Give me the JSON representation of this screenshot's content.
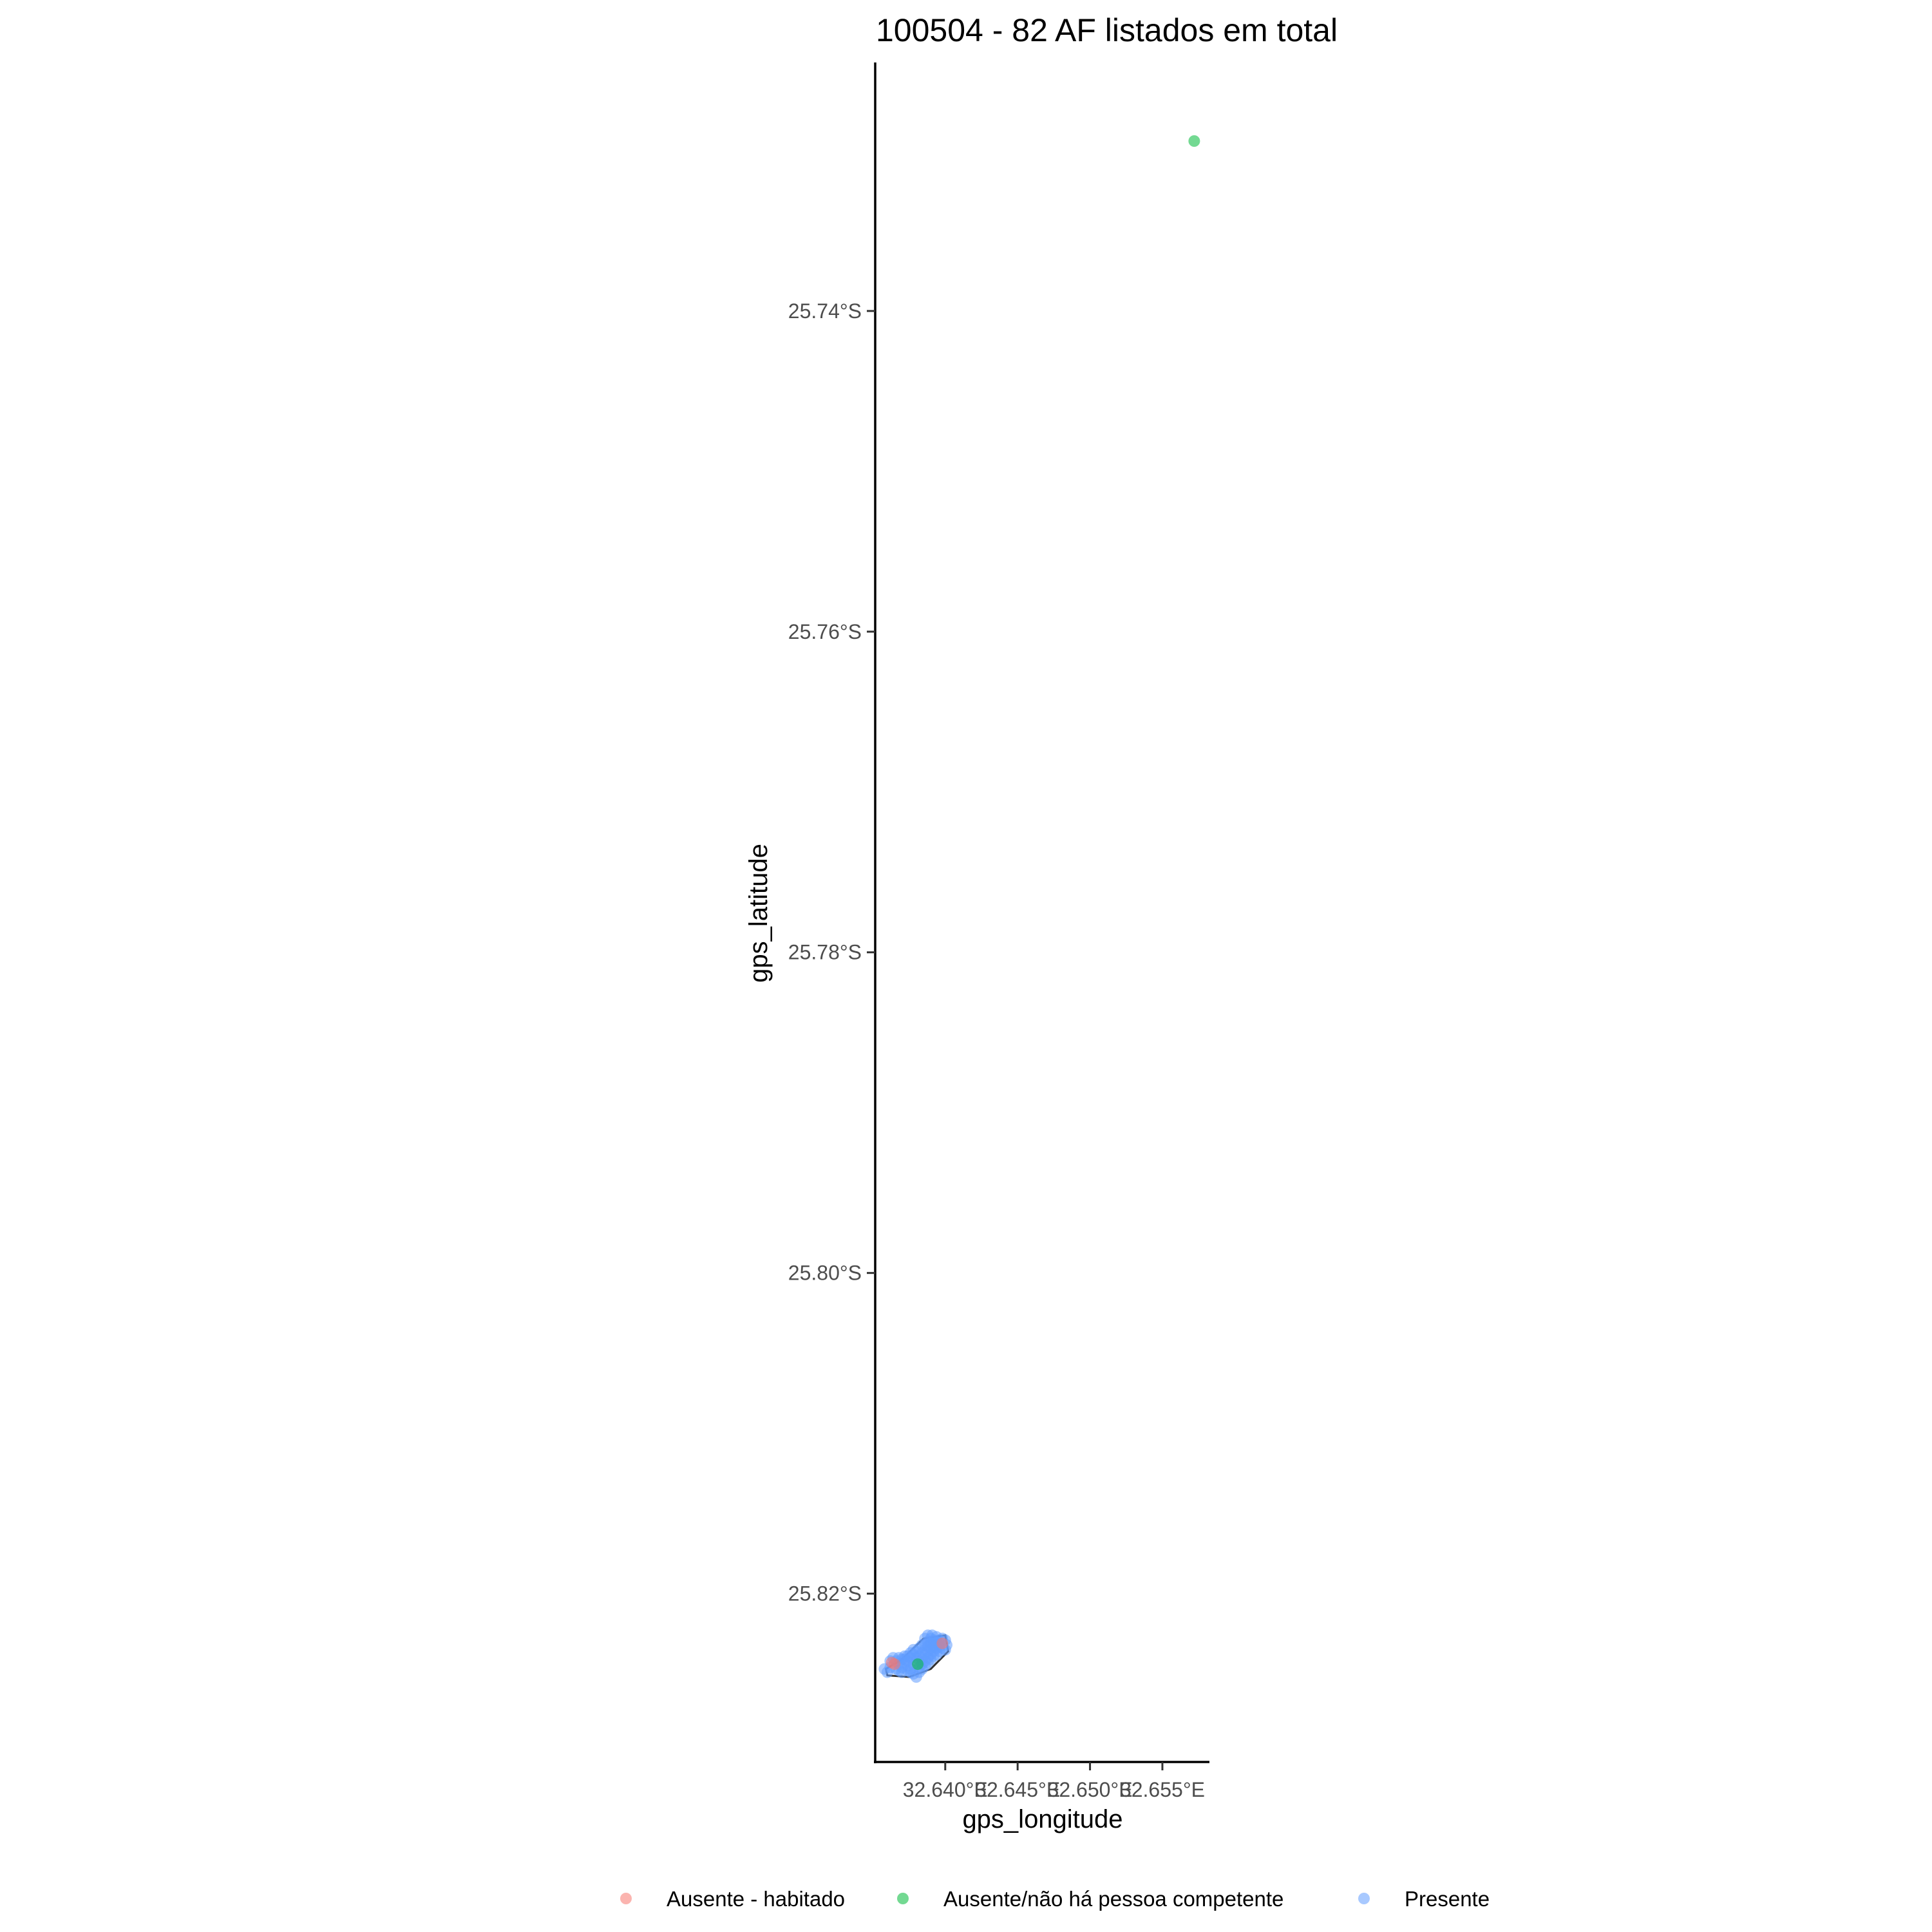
{
  "chart_data": {
    "type": "scatter",
    "title": "100504 - 82 AF listados em total",
    "xlabel": "gps_longitude",
    "ylabel": "gps_latitude",
    "xlim": [
      32.63525,
      32.65825
    ],
    "ylim": [
      -25.8305,
      -25.7245
    ],
    "x_ticks": [
      {
        "value": 32.64,
        "label": "32.640°E"
      },
      {
        "value": 32.645,
        "label": "32.645°E"
      },
      {
        "value": 32.65,
        "label": "32.650°E"
      },
      {
        "value": 32.655,
        "label": "32.655°E"
      }
    ],
    "y_ticks": [
      {
        "value": -25.74,
        "label": "25.74°S"
      },
      {
        "value": -25.76,
        "label": "25.76°S"
      },
      {
        "value": -25.78,
        "label": "25.78°S"
      },
      {
        "value": -25.8,
        "label": "25.80°S"
      },
      {
        "value": -25.82,
        "label": "25.82°S"
      }
    ],
    "grid": false,
    "legend_position": "bottom",
    "boundary": [
      [
        32.6359,
        -25.8247
      ],
      [
        32.637,
        -25.8241
      ],
      [
        32.6385,
        -25.8228
      ],
      [
        32.64,
        -25.8226
      ],
      [
        32.6402,
        -25.8236
      ],
      [
        32.639,
        -25.8247
      ],
      [
        32.6375,
        -25.8252
      ],
      [
        32.636,
        -25.8251
      ]
    ],
    "series": [
      {
        "name": "Ausente - habitado",
        "color": "#f8766d",
        "points": [
          [
            32.6363,
            -25.8243
          ],
          [
            32.6365,
            -25.8244
          ],
          [
            32.6398,
            -25.8231
          ]
        ]
      },
      {
        "name": "Ausente/não há pessoa competente",
        "color": "#00ba38",
        "points": [
          [
            32.6572,
            -25.7294
          ],
          [
            32.6381,
            -25.8244
          ]
        ]
      },
      {
        "name": "Presente",
        "color": "#619cff",
        "points": [
          [
            32.6362,
            -25.8246
          ],
          [
            32.6366,
            -25.8247
          ],
          [
            32.6368,
            -25.8244
          ],
          [
            32.637,
            -25.8246
          ],
          [
            32.6372,
            -25.8243
          ],
          [
            32.6374,
            -25.8245
          ],
          [
            32.6376,
            -25.8247
          ],
          [
            32.6378,
            -25.8244
          ],
          [
            32.638,
            -25.8242
          ],
          [
            32.6382,
            -25.8246
          ],
          [
            32.6384,
            -25.8241
          ],
          [
            32.6386,
            -25.8238
          ],
          [
            32.6388,
            -25.8236
          ],
          [
            32.639,
            -25.8234
          ],
          [
            32.6392,
            -25.8232
          ],
          [
            32.6394,
            -25.823
          ],
          [
            32.6396,
            -25.8229
          ],
          [
            32.6398,
            -25.8228
          ],
          [
            32.64,
            -25.8229
          ],
          [
            32.6401,
            -25.8232
          ],
          [
            32.6386,
            -25.8228
          ],
          [
            32.6388,
            -25.823
          ],
          [
            32.639,
            -25.8228
          ],
          [
            32.6392,
            -25.8229
          ],
          [
            32.6394,
            -25.8227
          ],
          [
            32.6396,
            -25.8231
          ],
          [
            32.639,
            -25.8231
          ],
          [
            32.6392,
            -25.8233
          ],
          [
            32.6388,
            -25.8233
          ],
          [
            32.6386,
            -25.8235
          ],
          [
            32.6384,
            -25.8237
          ],
          [
            32.6382,
            -25.8239
          ],
          [
            32.638,
            -25.824
          ],
          [
            32.6378,
            -25.8238
          ],
          [
            32.6376,
            -25.824
          ],
          [
            32.6374,
            -25.8242
          ],
          [
            32.6372,
            -25.8239
          ],
          [
            32.637,
            -25.8241
          ],
          [
            32.6368,
            -25.824
          ],
          [
            32.6366,
            -25.8242
          ],
          [
            32.6364,
            -25.824
          ],
          [
            32.6362,
            -25.8242
          ],
          [
            32.6384,
            -25.8244
          ],
          [
            32.6386,
            -25.8242
          ],
          [
            32.6388,
            -25.824
          ],
          [
            32.639,
            -25.8238
          ],
          [
            32.6392,
            -25.8236
          ],
          [
            32.6394,
            -25.8234
          ],
          [
            32.6396,
            -25.8233
          ],
          [
            32.6398,
            -25.8234
          ],
          [
            32.64,
            -25.8235
          ],
          [
            32.6382,
            -25.8249
          ],
          [
            32.638,
            -25.8252
          ],
          [
            32.6378,
            -25.825
          ],
          [
            32.6376,
            -25.8249
          ],
          [
            32.6374,
            -25.8248
          ],
          [
            32.637,
            -25.8249
          ],
          [
            32.6368,
            -25.8248
          ],
          [
            32.636,
            -25.8249
          ],
          [
            32.6358,
            -25.8247
          ],
          [
            32.6384,
            -25.8247
          ],
          [
            32.6386,
            -25.8245
          ],
          [
            32.6388,
            -25.8243
          ],
          [
            32.639,
            -25.8241
          ],
          [
            32.638,
            -25.8236
          ],
          [
            32.6382,
            -25.8234
          ],
          [
            32.6378,
            -25.8235
          ],
          [
            32.6376,
            -25.8237
          ],
          [
            32.6374,
            -25.8239
          ],
          [
            32.6372,
            -25.8241
          ],
          [
            32.6396,
            -25.8236
          ],
          [
            32.6394,
            -25.8238
          ],
          [
            32.6392,
            -25.8239
          ],
          [
            32.6384,
            -25.8232
          ],
          [
            32.6386,
            -25.8232
          ],
          [
            32.6388,
            -25.8226
          ],
          [
            32.6391,
            -25.8226
          ]
        ]
      }
    ]
  }
}
